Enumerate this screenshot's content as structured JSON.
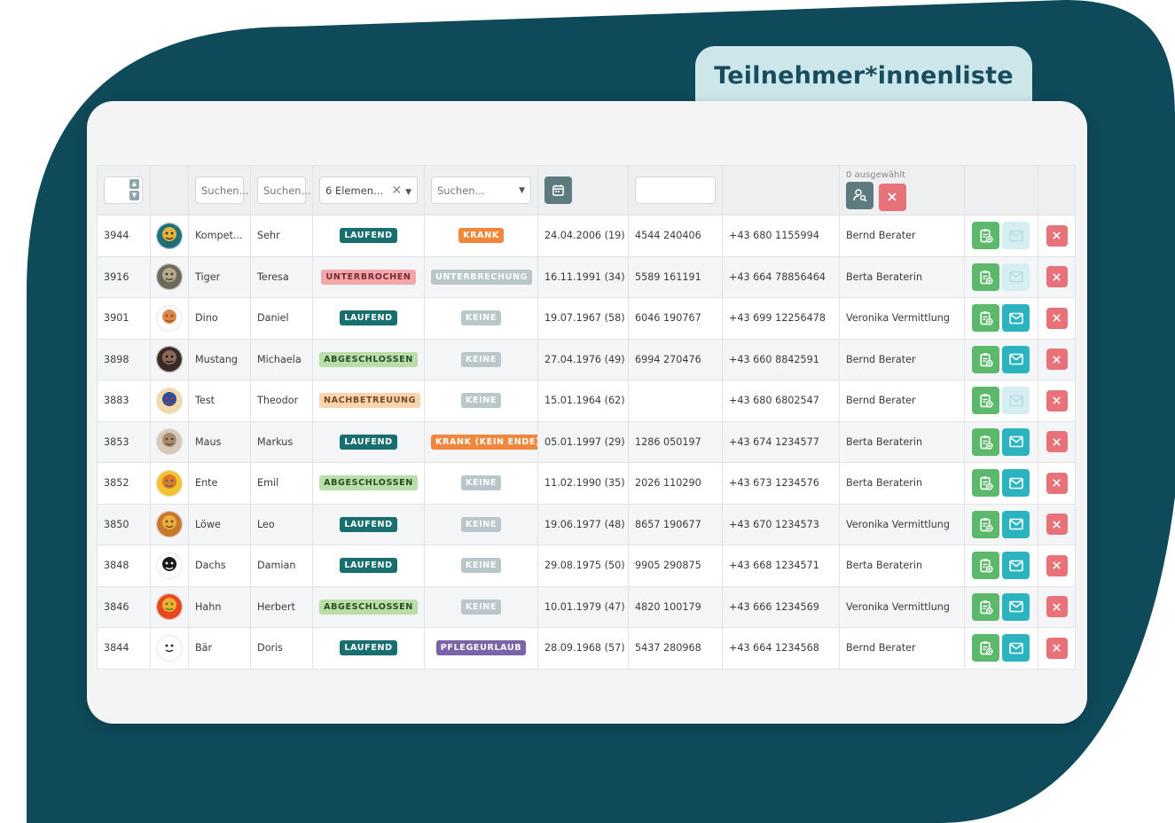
{
  "page_title": "Teilnehmer*innenliste",
  "filters": {
    "first_name_placeholder": "Suchen...",
    "last_name_placeholder": "Suchen...",
    "status_selected": "6 Elemen...",
    "reason_placeholder": "Suchen...",
    "selected_count": "0 ausgewählt"
  },
  "colors": {
    "brand_dark": "#0f4a5a",
    "title_tab": "#cde6ea",
    "status_laufend": "#196e70",
    "action_green": "#5cb86a",
    "action_teal": "#2bb4bf",
    "action_red": "#e8727a"
  },
  "rows": [
    {
      "id": "3944",
      "name": "Kompet...",
      "first": "Sehr",
      "status": "LAUFEND",
      "status_kind": "laufend",
      "reason": "KRANK",
      "reason_kind": "krank",
      "birth": "24.04.2006 (19)",
      "svnr": "4544 240406",
      "phone": "+43 680 1155994",
      "advisor": "Bernd Berater",
      "mail_enabled": false,
      "avatar": "portrait-woman-avatar"
    },
    {
      "id": "3916",
      "name": "Tiger",
      "first": "Teresa",
      "status": "UNTERBROCHEN",
      "status_kind": "unterbrochen",
      "reason": "UNTERBRECHUNG",
      "reason_kind": "unterbrechung",
      "birth": "16.11.1991 (34)",
      "svnr": "5589 161191",
      "phone": "+43 664 78856464",
      "advisor": "Berta Beraterin",
      "mail_enabled": false,
      "avatar": "tiger-avatar"
    },
    {
      "id": "3901",
      "name": "Dino",
      "first": "Daniel",
      "status": "LAUFEND",
      "status_kind": "laufend",
      "reason": "KEINE",
      "reason_kind": "keine",
      "birth": "19.07.1967 (58)",
      "svnr": "6046 190767",
      "phone": "+43 699 12256478",
      "advisor": "Veronika Vermittlung",
      "mail_enabled": true,
      "avatar": "dino-avatar"
    },
    {
      "id": "3898",
      "name": "Mustang",
      "first": "Michaela",
      "status": "ABGESCHLOSSEN",
      "status_kind": "abgeschlossen",
      "reason": "KEINE",
      "reason_kind": "keine",
      "birth": "27.04.1976 (49)",
      "svnr": "6994 270476",
      "phone": "+43 660 8842591",
      "advisor": "Bernd Berater",
      "mail_enabled": true,
      "avatar": "horse-avatar"
    },
    {
      "id": "3883",
      "name": "Test",
      "first": "Theodor",
      "status": "NACHBETREUUNG",
      "status_kind": "nachbetreuung",
      "reason": "KEINE",
      "reason_kind": "keine",
      "birth": "15.01.1964 (62)",
      "svnr": "",
      "phone": "+43 680 6802547",
      "advisor": "Bernd Berater",
      "mail_enabled": false,
      "avatar": "businessman-avatar"
    },
    {
      "id": "3853",
      "name": "Maus",
      "first": "Markus",
      "status": "LAUFEND",
      "status_kind": "laufend",
      "reason": "KRANK (KEIN ENDE)",
      "reason_kind": "krank",
      "birth": "05.01.1997 (29)",
      "svnr": "1286 050197",
      "phone": "+43 674 1234577",
      "advisor": "Berta Beraterin",
      "mail_enabled": true,
      "avatar": "mouse-avatar"
    },
    {
      "id": "3852",
      "name": "Ente",
      "first": "Emil",
      "status": "ABGESCHLOSSEN",
      "status_kind": "abgeschlossen",
      "reason": "KEINE",
      "reason_kind": "keine",
      "birth": "11.02.1990 (35)",
      "svnr": "2026 110290",
      "phone": "+43 673 1234576",
      "advisor": "Berta Beraterin",
      "mail_enabled": true,
      "avatar": "duck-avatar"
    },
    {
      "id": "3850",
      "name": "Löwe",
      "first": "Leo",
      "status": "LAUFEND",
      "status_kind": "laufend",
      "reason": "KEINE",
      "reason_kind": "keine",
      "birth": "19.06.1977 (48)",
      "svnr": "8657 190677",
      "phone": "+43 670 1234573",
      "advisor": "Veronika Vermittlung",
      "mail_enabled": true,
      "avatar": "lion-avatar"
    },
    {
      "id": "3848",
      "name": "Dachs",
      "first": "Damian",
      "status": "LAUFEND",
      "status_kind": "laufend",
      "reason": "KEINE",
      "reason_kind": "keine",
      "birth": "29.08.1975 (50)",
      "svnr": "9905 290875",
      "phone": "+43 668 1234571",
      "advisor": "Berta Beraterin",
      "mail_enabled": true,
      "avatar": "badger-avatar"
    },
    {
      "id": "3846",
      "name": "Hahn",
      "first": "Herbert",
      "status": "ABGESCHLOSSEN",
      "status_kind": "abgeschlossen",
      "reason": "KEINE",
      "reason_kind": "keine",
      "birth": "10.01.1979 (47)",
      "svnr": "4820 100179",
      "phone": "+43 666 1234569",
      "advisor": "Veronika Vermittlung",
      "mail_enabled": true,
      "avatar": "rooster-avatar"
    },
    {
      "id": "3844",
      "name": "Bär",
      "first": "Doris",
      "status": "LAUFEND",
      "status_kind": "laufend",
      "reason": "PFLEGEURLAUB",
      "reason_kind": "pflege",
      "birth": "28.09.1968 (57)",
      "svnr": "5437 280968",
      "phone": "+43 664 1234568",
      "advisor": "Bernd Berater",
      "mail_enabled": true,
      "avatar": "bear-avatar"
    }
  ]
}
